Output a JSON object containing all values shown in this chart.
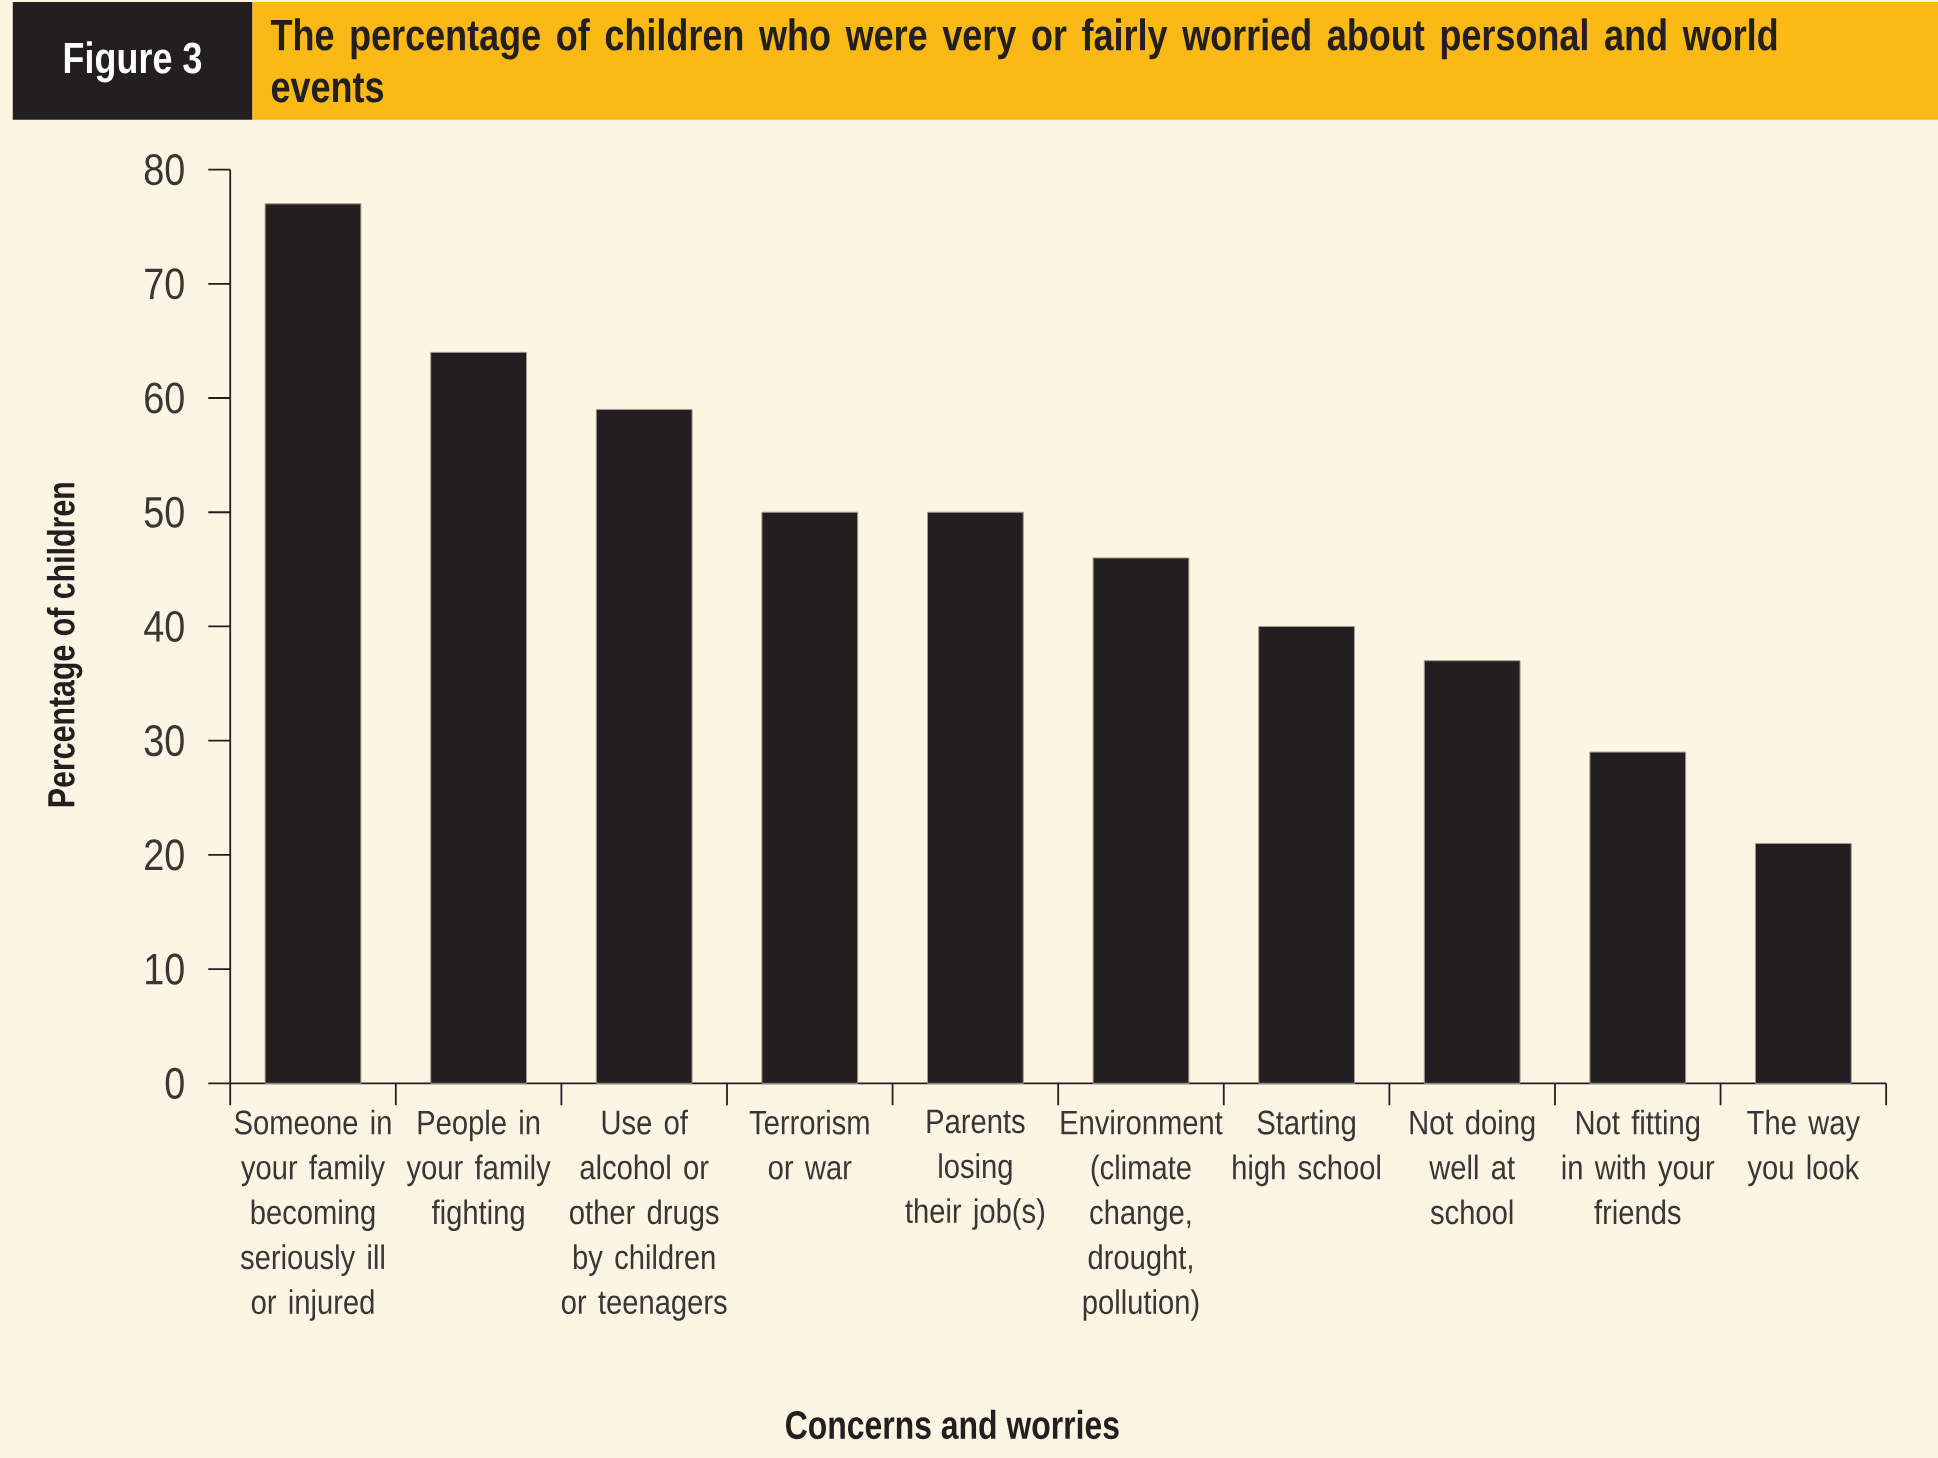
{
  "chart_data": {
    "type": "bar",
    "title": "The percentage of children who were very or fairly worried about personal and world events",
    "annotations": [
      "Figure 3"
    ],
    "xlabel": "Concerns and worries",
    "ylabel": "Percentage of children",
    "categories": [
      "Someone in your family becoming seriously ill or injured",
      "People in your family fighting",
      "Use of alcohol or other drugs by children or teenagers",
      "Terrorism or war",
      "Parents losing their job(s)",
      "Environment (climate change, drought, pollution)",
      "Starting high school",
      "Not doing well at school",
      "Not fitting in with your friends",
      "The way you look"
    ],
    "values": [
      77,
      64,
      59,
      50,
      50,
      46,
      40,
      37,
      29,
      21
    ],
    "color": "#231f20",
    "ylim": [
      0,
      80
    ],
    "yticks": [
      0,
      10,
      20,
      30,
      40,
      50,
      60,
      70,
      80
    ]
  }
}
